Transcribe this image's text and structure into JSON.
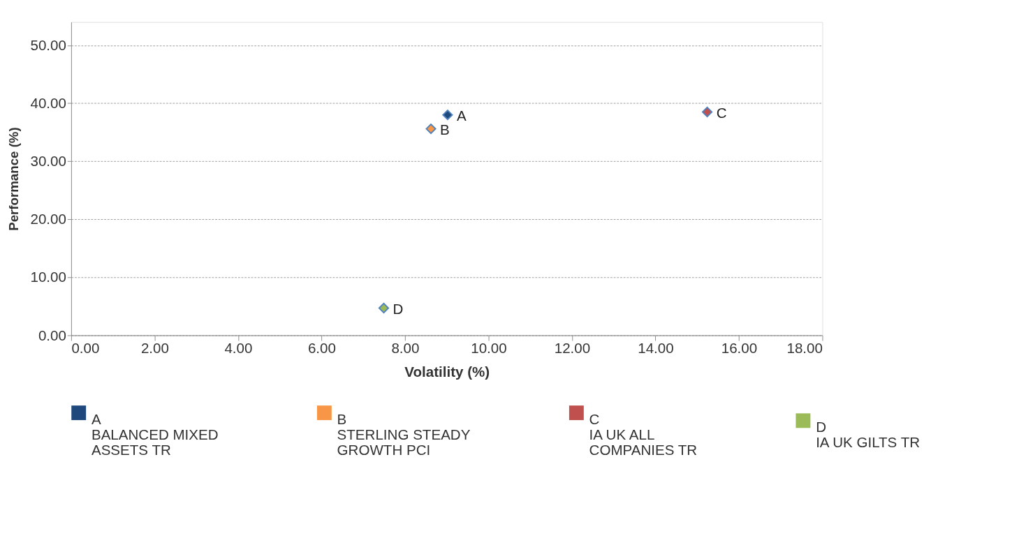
{
  "chart_data": {
    "type": "scatter",
    "xlabel": "Volatility (%)",
    "ylabel": "Performance (%)",
    "series": [
      {
        "name": "A BALANCED MIXED ASSETS TR",
        "color": "#1f497d",
        "x": [
          9.02
        ],
        "values": [
          38.0
        ]
      },
      {
        "name": "B STERLING STEADY GROWTH PCI",
        "color": "#f79646",
        "x": [
          8.62
        ],
        "values": [
          35.6
        ]
      },
      {
        "name": "C IA UK ALL COMPANIES TR",
        "color": "#c0504d",
        "x": [
          15.24
        ],
        "values": [
          38.5
        ]
      },
      {
        "name": "D IA UK GILTS TR",
        "color": "#9bbb59",
        "x": [
          7.49
        ],
        "values": [
          4.7
        ]
      }
    ],
    "annotations": [
      {
        "text": "A",
        "x": 9.02,
        "y": 38.0
      },
      {
        "text": "B",
        "x": 8.62,
        "y": 35.6
      },
      {
        "text": "C",
        "x": 15.24,
        "y": 38.5
      },
      {
        "text": "D",
        "x": 7.49,
        "y": 4.7
      }
    ],
    "xlim": [
      0,
      18
    ],
    "ylim": [
      0,
      54
    ],
    "xticks": [
      {
        "value": 0,
        "label": "0.00"
      },
      {
        "value": 2,
        "label": "2.00"
      },
      {
        "value": 4,
        "label": "4.00"
      },
      {
        "value": 6,
        "label": "6.00"
      },
      {
        "value": 8,
        "label": "8.00"
      },
      {
        "value": 10,
        "label": "10.00"
      },
      {
        "value": 12,
        "label": "12.00"
      },
      {
        "value": 14,
        "label": "14.00"
      },
      {
        "value": 16,
        "label": "16.00"
      },
      {
        "value": 18,
        "label": "18.00"
      }
    ],
    "yticks": [
      {
        "value": 0,
        "label": "0.00"
      },
      {
        "value": 10,
        "label": "10.00"
      },
      {
        "value": 20,
        "label": "20.00"
      },
      {
        "value": 30,
        "label": "30.00"
      },
      {
        "value": 40,
        "label": "40.00"
      },
      {
        "value": 50,
        "label": "50.00"
      }
    ],
    "grid": "y",
    "legend": "bottom",
    "marker": "diamond"
  }
}
